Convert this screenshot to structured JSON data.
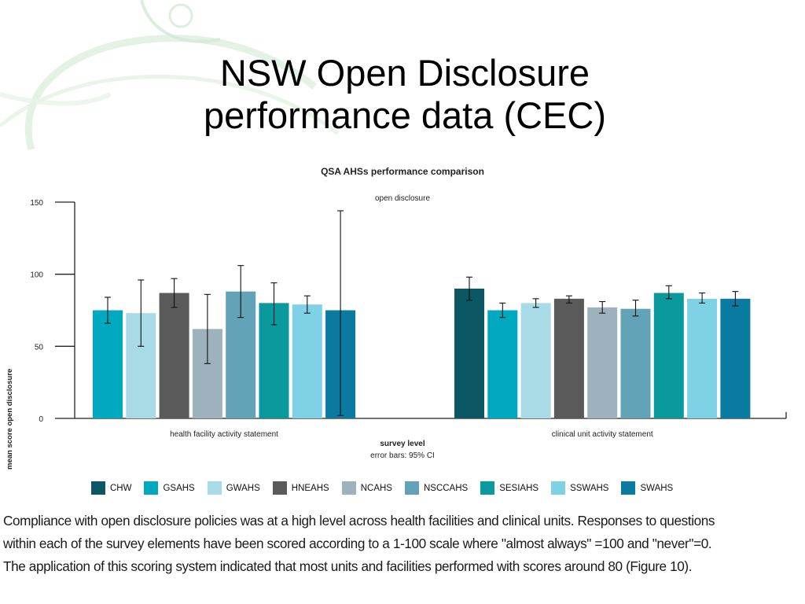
{
  "slide": {
    "title_line1": "NSW Open Disclosure",
    "title_line2": "performance data (CEC)",
    "caption_lines": [
      "Compliance with open disclosure policies was at a high level across health facilities and clinical units. Responses to questions",
      "within each of the survey elements have been scored according to a 1-100 scale where \"almost always\" =100 and \"never\"=0.",
      "The application of this scoring system indicated that most units and facilities performed with scores around 80 (Figure 10)."
    ]
  },
  "chart_data": {
    "type": "bar",
    "title": "QSA AHSs performance comparison",
    "subtitle": "open disclosure",
    "ylabel": "mean score open disclosure",
    "xlabel": "survey level",
    "note": "error bars: 95% CI",
    "ylim": [
      0,
      150
    ],
    "yticks": [
      0,
      50,
      100,
      150
    ],
    "grid": false,
    "legend_position": "bottom",
    "categories": [
      "health facility activity statement",
      "clinical unit activity statement"
    ],
    "series": [
      {
        "name": "CHW",
        "color": "#0b5763",
        "values": [
          null,
          90
        ],
        "ci": [
          null,
          [
            82,
            98
          ]
        ]
      },
      {
        "name": "GSAHS",
        "color": "#00a9c0",
        "values": [
          75,
          75
        ],
        "ci": [
          [
            66,
            84
          ],
          [
            70,
            80
          ]
        ]
      },
      {
        "name": "GWAHS",
        "color": "#a8dbe6",
        "values": [
          73,
          80
        ],
        "ci": [
          [
            50,
            96
          ],
          [
            77,
            83
          ]
        ]
      },
      {
        "name": "HNEAHS",
        "color": "#5a5a5a",
        "values": [
          87,
          83
        ],
        "ci": [
          [
            77,
            97
          ],
          [
            80,
            85
          ]
        ]
      },
      {
        "name": "NCAHS",
        "color": "#9db2bd",
        "values": [
          62,
          77
        ],
        "ci": [
          [
            38,
            86
          ],
          [
            73,
            81
          ]
        ]
      },
      {
        "name": "NSCCAHS",
        "color": "#62a3b8",
        "values": [
          88,
          76
        ],
        "ci": [
          [
            70,
            106
          ],
          [
            71,
            82
          ]
        ]
      },
      {
        "name": "SESIAHS",
        "color": "#0a9a9e",
        "values": [
          80,
          87
        ],
        "ci": [
          [
            65,
            94
          ],
          [
            83,
            92
          ]
        ]
      },
      {
        "name": "SSWAHS",
        "color": "#7fd2e6",
        "values": [
          79,
          83
        ],
        "ci": [
          [
            73,
            85
          ],
          [
            80,
            87
          ]
        ]
      },
      {
        "name": "SWAHS",
        "color": "#0a7aa0",
        "values": [
          75,
          83
        ],
        "ci": [
          [
            2,
            144
          ],
          [
            78,
            88
          ]
        ]
      }
    ]
  }
}
